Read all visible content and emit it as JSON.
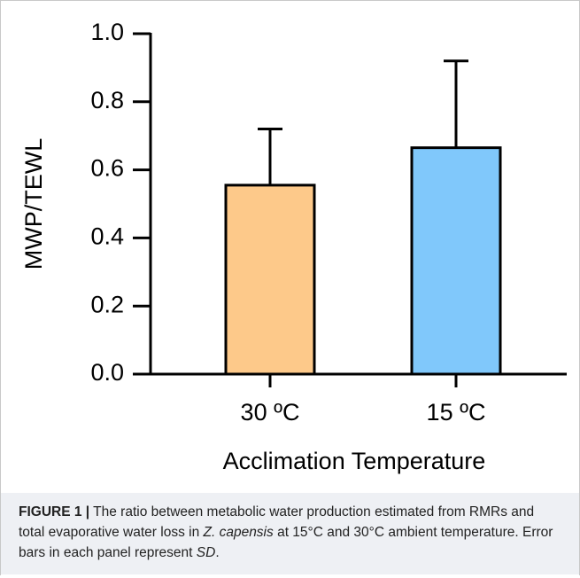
{
  "chart_data": {
    "type": "bar",
    "categories": [
      "30 ºC",
      "15 ºC"
    ],
    "values": [
      0.555,
      0.665
    ],
    "errors": [
      0.165,
      0.255
    ],
    "colors": [
      "#fdc98a",
      "#80c8fb"
    ],
    "x_label": "Acclimation Temperature",
    "y_label": "MWP/TEWL",
    "ylim": [
      0,
      1
    ],
    "yticks": [
      {
        "value": 0,
        "label": "0.0"
      },
      0.2,
      0.4,
      0.6,
      0.8,
      {
        "value": 1,
        "label": "1.0"
      }
    ],
    "grid": false
  },
  "caption": {
    "label": "FIGURE 1",
    "separator": "|",
    "runs": [
      "The ratio between metabolic water production estimated from RMRs and total evaporative water loss in ",
      "Z. capensis",
      " at 15°C and 30°C ambient temperature. Error bars in each panel represent ",
      "SD",
      "."
    ]
  }
}
